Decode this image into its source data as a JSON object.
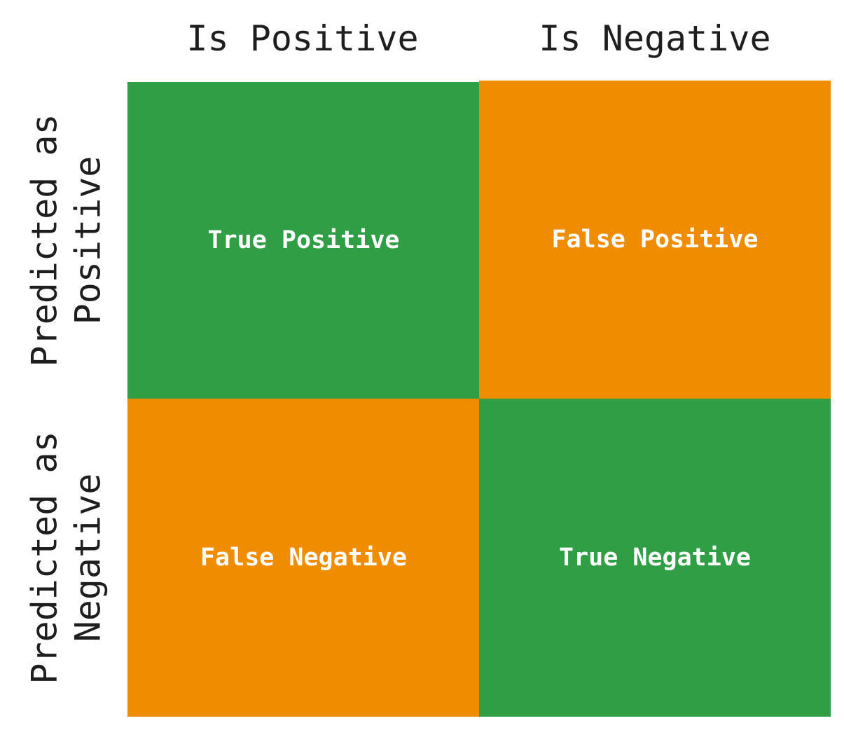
{
  "columns": [
    "Is Positive",
    "Is Negative"
  ],
  "rows": [
    {
      "line1": "Predicted as",
      "line2": "Positive"
    },
    {
      "line1": "Predicted as",
      "line2": "Negative"
    }
  ],
  "cells": [
    {
      "label": "True Positive",
      "color": "#2f9e44"
    },
    {
      "label": "False Positive",
      "color": "#f08c00"
    },
    {
      "label": "False Negative",
      "color": "#f08c00"
    },
    {
      "label": "True Negative",
      "color": "#2f9e44"
    }
  ]
}
